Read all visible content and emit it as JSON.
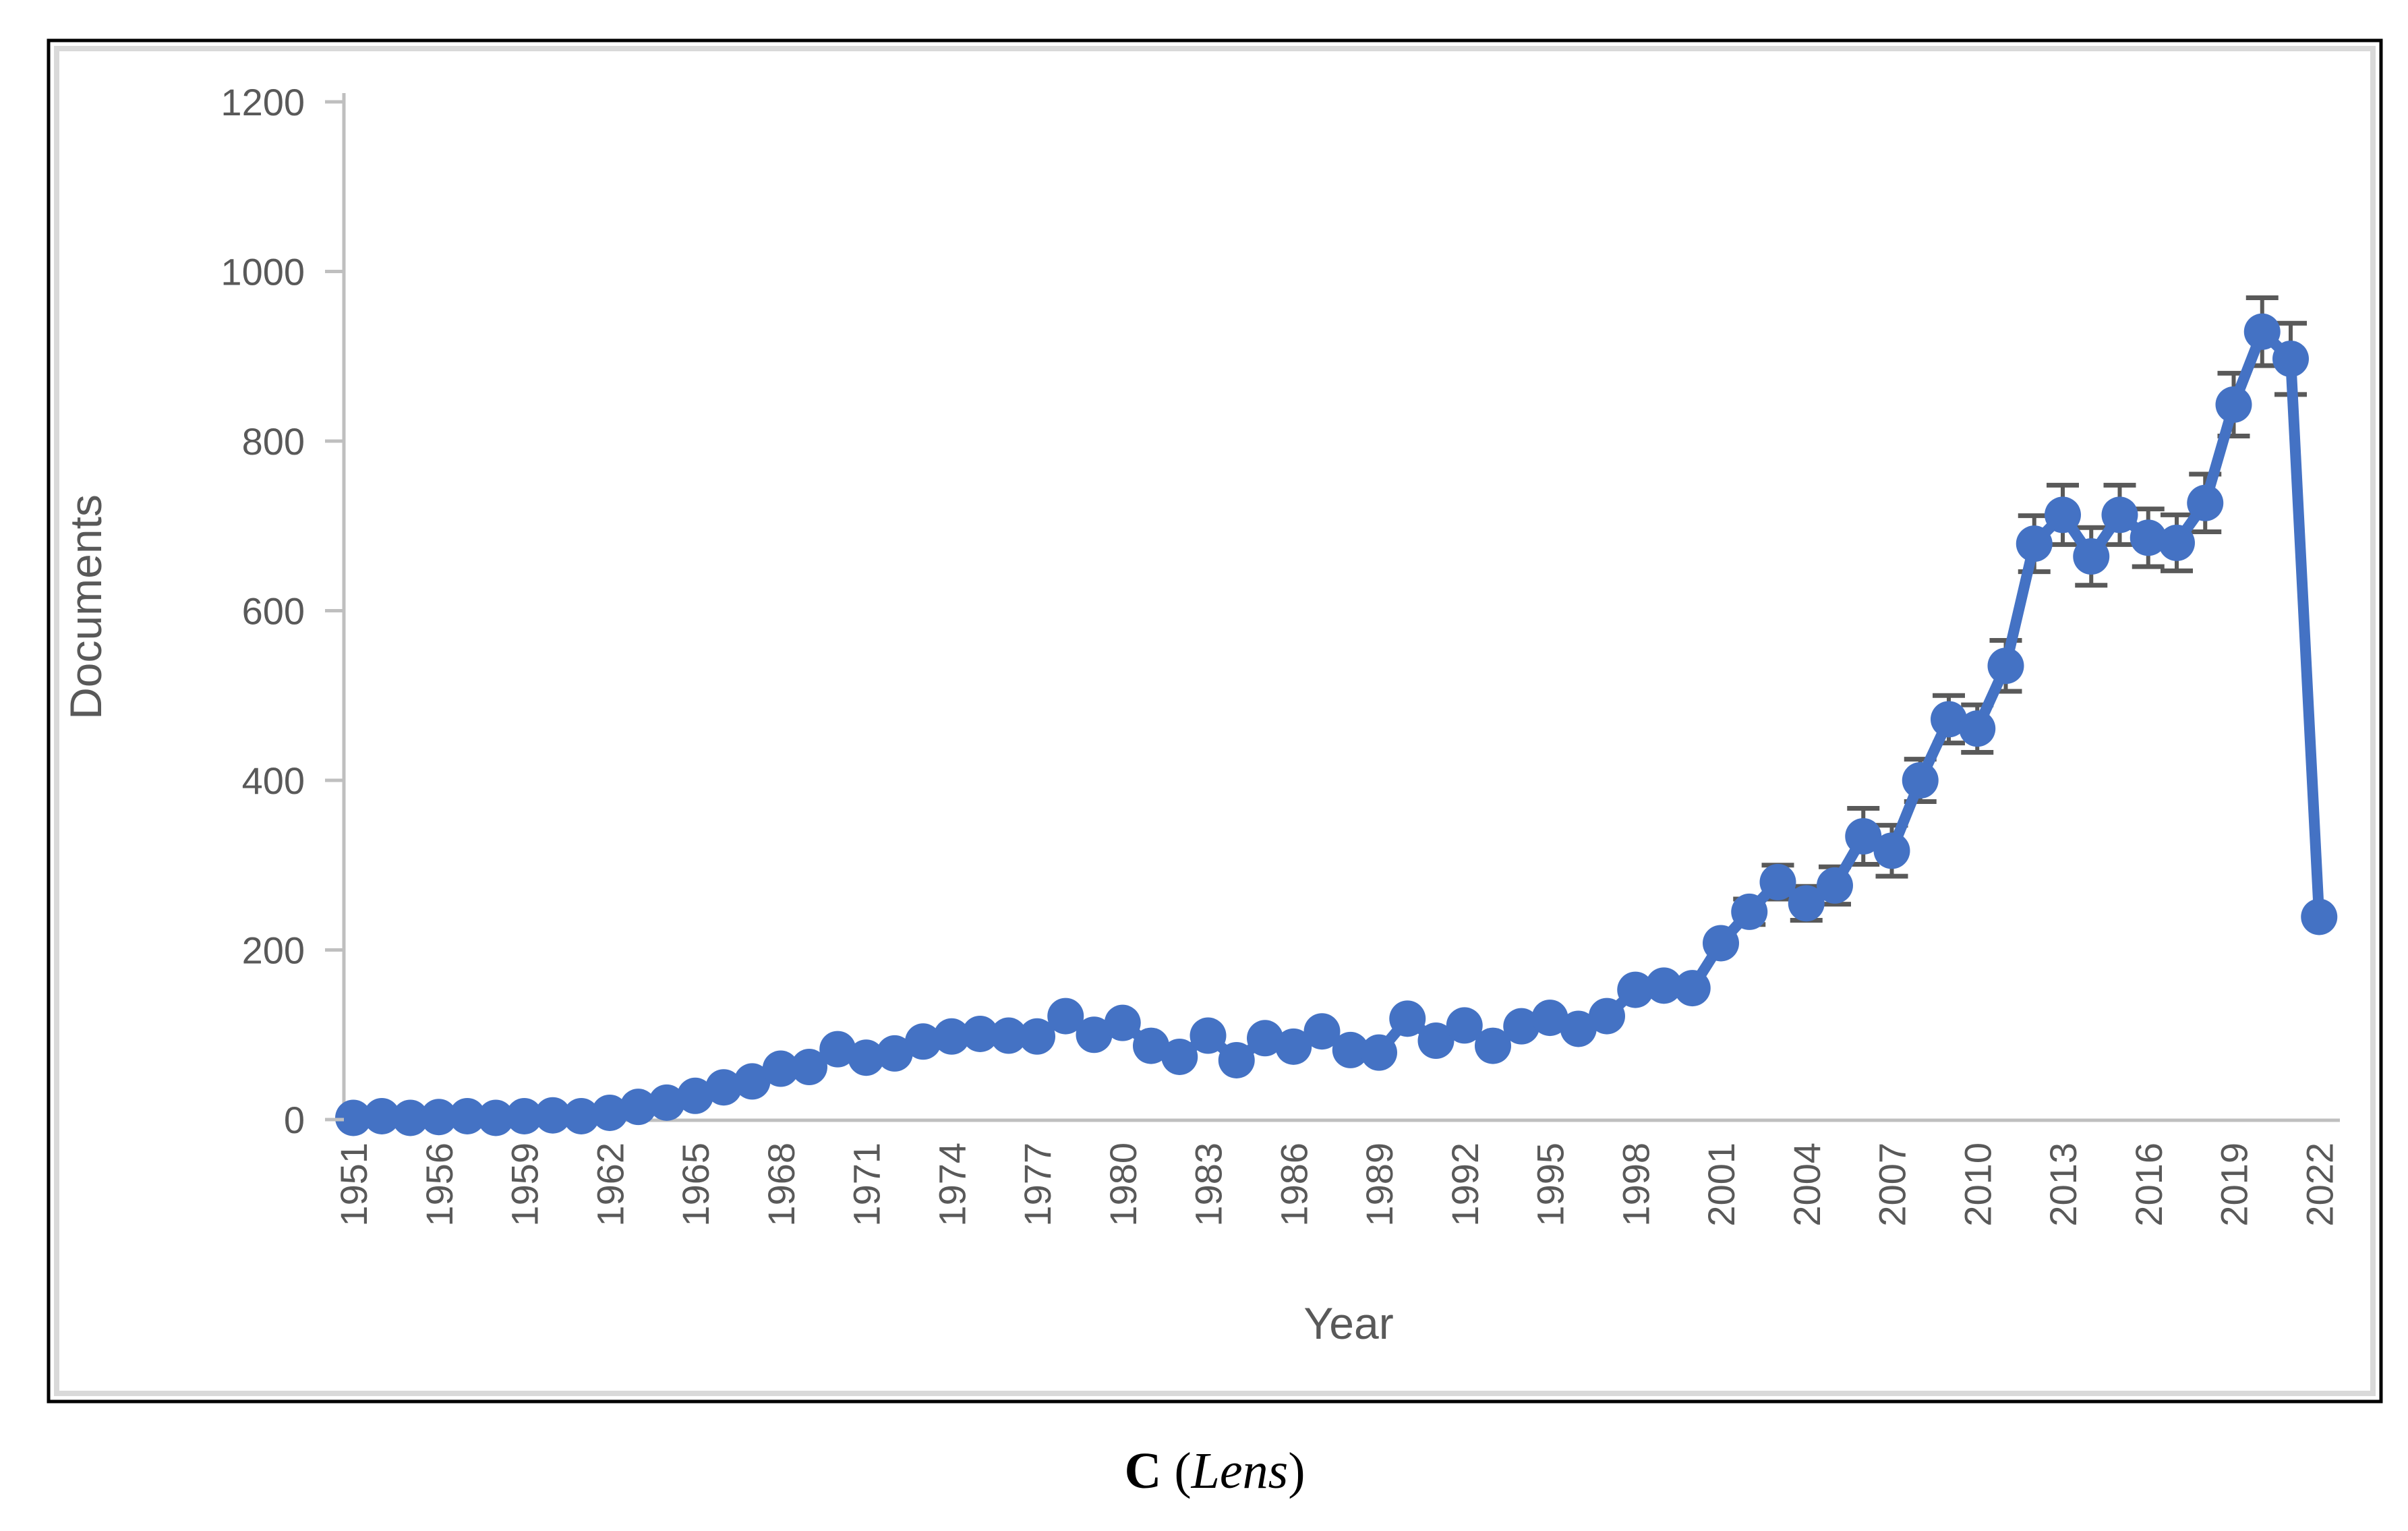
{
  "figure": {
    "caption": {
      "parts": [
        "C",
        " (",
        "Lens",
        ")"
      ],
      "full_text": "C (Lens)"
    }
  },
  "chart_data": {
    "type": "line",
    "title": "",
    "xlabel": "Year",
    "ylabel": "Documents",
    "ylim": [
      0,
      1200
    ],
    "ytick_interval": 200,
    "yticks": [
      0,
      200,
      400,
      600,
      800,
      1000,
      1200
    ],
    "xtick_labels": [
      "1951",
      "1956",
      "1959",
      "1962",
      "1965",
      "1968",
      "1971",
      "1974",
      "1977",
      "1980",
      "1983",
      "1986",
      "1989",
      "1992",
      "1995",
      "1998",
      "2001",
      "2004",
      "2007",
      "2010",
      "2013",
      "2016",
      "2019",
      "2022"
    ],
    "x_label_every": 3,
    "grid": false,
    "legend": null,
    "marker": "circle",
    "error_bars": "vertical, dark gray caps, years 2002-2021",
    "series": [
      {
        "name": "Documents",
        "points": [
          [
            1951,
            2,
            null
          ],
          [
            1953,
            4,
            null
          ],
          [
            1955,
            2,
            null
          ],
          [
            1956,
            3,
            null
          ],
          [
            1957,
            4,
            null
          ],
          [
            1958,
            2,
            null
          ],
          [
            1959,
            4,
            null
          ],
          [
            1960,
            5,
            null
          ],
          [
            1961,
            4,
            null
          ],
          [
            1962,
            8,
            null
          ],
          [
            1963,
            15,
            null
          ],
          [
            1964,
            20,
            null
          ],
          [
            1965,
            28,
            null
          ],
          [
            1966,
            38,
            null
          ],
          [
            1967,
            45,
            null
          ],
          [
            1968,
            60,
            null
          ],
          [
            1969,
            62,
            null
          ],
          [
            1970,
            83,
            null
          ],
          [
            1971,
            73,
            null
          ],
          [
            1972,
            78,
            null
          ],
          [
            1973,
            92,
            null
          ],
          [
            1974,
            98,
            null
          ],
          [
            1975,
            101,
            null
          ],
          [
            1976,
            99,
            null
          ],
          [
            1977,
            98,
            null
          ],
          [
            1978,
            122,
            null
          ],
          [
            1979,
            100,
            null
          ],
          [
            1980,
            114,
            null
          ],
          [
            1981,
            87,
            null
          ],
          [
            1982,
            74,
            null
          ],
          [
            1983,
            99,
            null
          ],
          [
            1984,
            70,
            null
          ],
          [
            1985,
            96,
            null
          ],
          [
            1986,
            86,
            null
          ],
          [
            1987,
            104,
            null
          ],
          [
            1988,
            82,
            null
          ],
          [
            1989,
            79,
            null
          ],
          [
            1990,
            119,
            null
          ],
          [
            1991,
            93,
            null
          ],
          [
            1992,
            111,
            null
          ],
          [
            1993,
            87,
            null
          ],
          [
            1994,
            110,
            null
          ],
          [
            1995,
            120,
            null
          ],
          [
            1996,
            107,
            null
          ],
          [
            1997,
            122,
            null
          ],
          [
            1998,
            153,
            null
          ],
          [
            1999,
            158,
            null
          ],
          [
            2000,
            155,
            null
          ],
          [
            2001,
            208,
            null
          ],
          [
            2002,
            245,
            15
          ],
          [
            2003,
            280,
            20
          ],
          [
            2004,
            255,
            20
          ],
          [
            2005,
            276,
            22
          ],
          [
            2006,
            334,
            33
          ],
          [
            2007,
            317,
            30
          ],
          [
            2008,
            400,
            25
          ],
          [
            2009,
            472,
            28
          ],
          [
            2010,
            461,
            28
          ],
          [
            2011,
            535,
            30
          ],
          [
            2012,
            679,
            33
          ],
          [
            2013,
            713,
            35
          ],
          [
            2014,
            664,
            34
          ],
          [
            2015,
            713,
            35
          ],
          [
            2016,
            686,
            34
          ],
          [
            2017,
            680,
            33
          ],
          [
            2018,
            727,
            34
          ],
          [
            2019,
            843,
            37
          ],
          [
            2020,
            929,
            40
          ],
          [
            2021,
            897,
            42
          ],
          [
            2022,
            239,
            null
          ]
        ]
      }
    ]
  },
  "styles": {
    "line_color": "#4472C4",
    "marker_color": "#4472C4",
    "error_bar_color": "#595959",
    "axis_line_color": "#BFBFBF",
    "tick_label_color": "#595959",
    "axis_title_color": "#595959",
    "caption_color": "#000000",
    "outer_frame_color": "#000000",
    "inner_frame_color": "#D9D9D9",
    "background": "#FFFFFF"
  }
}
